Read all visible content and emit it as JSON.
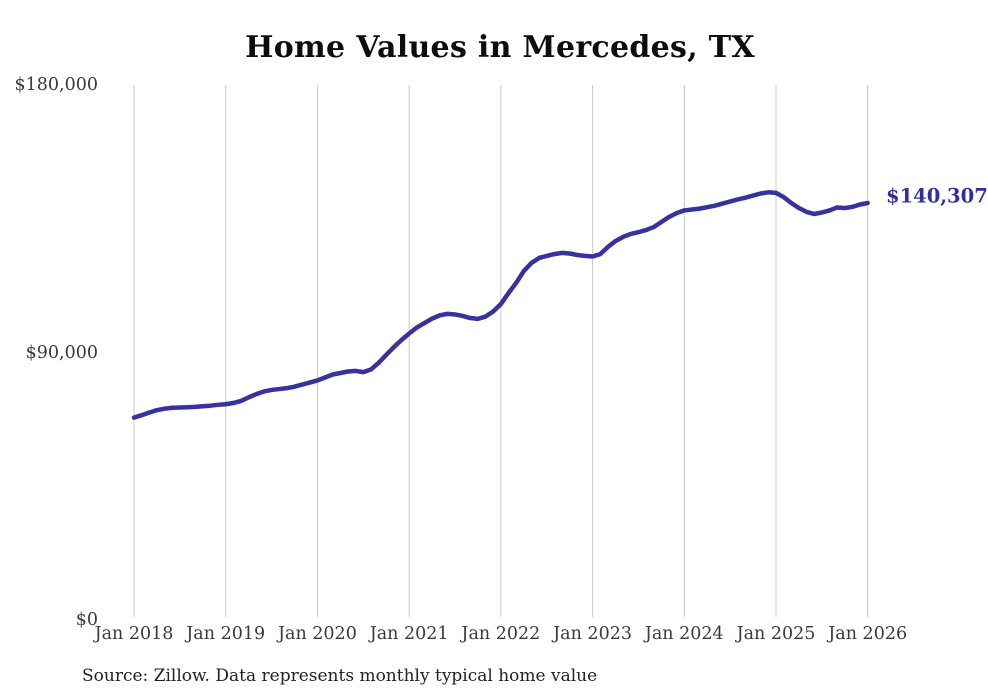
{
  "title": "Home Values in Mercedes, TX",
  "source_note": "Source: Zillow. Data represents monthly typical home value",
  "end_label": "$140,307",
  "colors": {
    "line": "#3632a0",
    "grid": "#c9c9c9",
    "tick_text": "#3a3a3a",
    "title_text": "#0d0d0d",
    "end_label_text": "#2f2f9e",
    "background": "#ffffff"
  },
  "chart_data": {
    "type": "line",
    "title": "Home Values in Mercedes, TX",
    "xlabel": "",
    "ylabel": "",
    "frequency": "monthly",
    "x_start": "Jan 2018",
    "x_end": "Jan 2026",
    "x_tick_labels": [
      "Jan 2018",
      "Jan 2019",
      "Jan 2020",
      "Jan 2021",
      "Jan 2022",
      "Jan 2023",
      "Jan 2024",
      "Jan 2025",
      "Jan 2026"
    ],
    "y_ticks": [
      0,
      90000,
      180000
    ],
    "y_tick_labels": [
      "$0",
      "$90,000",
      "$180,000"
    ],
    "ylim": [
      0,
      180000
    ],
    "grid": "vertical-only",
    "legend_position": "none",
    "end_value": 140307,
    "end_value_label": "$140,307",
    "series": [
      {
        "name": "Typical home value",
        "values": [
          68100,
          68900,
          69800,
          70600,
          71100,
          71400,
          71500,
          71600,
          71700,
          71900,
          72100,
          72400,
          72600,
          73000,
          73700,
          74900,
          76000,
          76900,
          77400,
          77700,
          78000,
          78500,
          79200,
          79900,
          80600,
          81600,
          82600,
          83100,
          83600,
          83800,
          83400,
          84300,
          86500,
          89200,
          91800,
          94200,
          96400,
          98400,
          99900,
          101400,
          102500,
          103000,
          102800,
          102300,
          101600,
          101300,
          102100,
          103800,
          106300,
          110000,
          113400,
          117400,
          120100,
          121800,
          122500,
          123100,
          123500,
          123300,
          122800,
          122500,
          122300,
          123100,
          125500,
          127500,
          128900,
          129900,
          130500,
          131200,
          132200,
          133900,
          135600,
          136900,
          137800,
          138100,
          138400,
          138900,
          139400,
          140100,
          140800,
          141500,
          142100,
          142800,
          143500,
          143900,
          143700,
          142300,
          140300,
          138600,
          137300,
          136600,
          137100,
          137800,
          138800,
          138600,
          139000,
          139800,
          140307
        ]
      }
    ]
  }
}
